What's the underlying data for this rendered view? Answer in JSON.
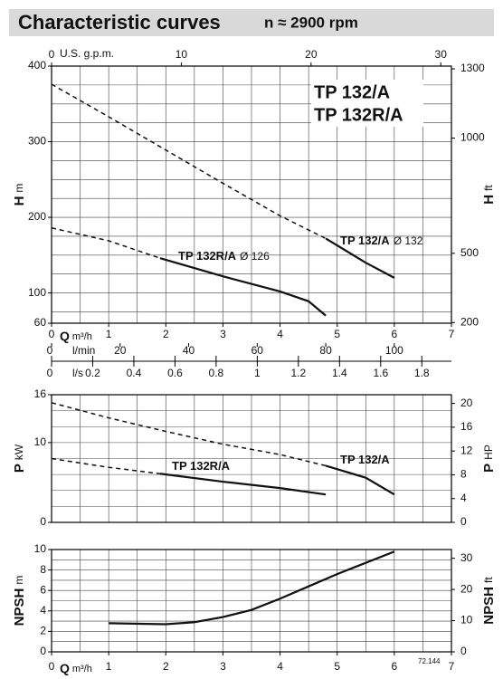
{
  "header": {
    "title": "Characteristic curves",
    "speed": "n ≈ 2900 rpm"
  },
  "chart_data": [
    {
      "type": "line",
      "ylabel": "H",
      "yunit": "m",
      "y2label": "H",
      "y2unit": "ft",
      "xlabel": "Q",
      "xunit": "m³/h",
      "xlim": [
        0,
        7
      ],
      "xticks": [
        0,
        1,
        2,
        3,
        4,
        5,
        6,
        7
      ],
      "xgrid": [
        0.5,
        1,
        1.5,
        2,
        2.5,
        3,
        3.5,
        4,
        4.5,
        5,
        5.5,
        6,
        6.5
      ],
      "ylim": [
        60,
        400
      ],
      "yticks": [
        60,
        100,
        200,
        300,
        400
      ],
      "ygrid": [
        75,
        100,
        125,
        150,
        175,
        200,
        225,
        250,
        275,
        300,
        325,
        350,
        375
      ],
      "y2lim": [
        197,
        1312
      ],
      "y2ticks": [
        200,
        500,
        1000,
        1300
      ],
      "top_axis": {
        "label": "U.S. g.p.m.",
        "lim": [
          0,
          30.82
        ],
        "ticks": [
          0,
          10,
          20,
          30
        ]
      },
      "extra_axes": [
        {
          "label": "l/min",
          "lim": [
            0,
            116.67
          ],
          "ticks": [
            0,
            20,
            40,
            60,
            80,
            100
          ]
        },
        {
          "label": "l/s",
          "lim": [
            0,
            1.944
          ],
          "ticks": [
            0,
            0.2,
            0.4,
            0.6,
            0.8,
            1,
            1.2,
            1.4,
            1.6,
            1.8
          ]
        }
      ],
      "box_labels": [
        "TP 132/A",
        "TP 132R/A"
      ],
      "annotations": [
        {
          "label": "TP 132/A",
          "size": "Ø 132"
        },
        {
          "label": "TP 132R/A",
          "size": "Ø 126"
        }
      ],
      "series": [
        {
          "color": "#111111",
          "dash_to": 4.8,
          "x": [
            0,
            1,
            2,
            3,
            4,
            4.8,
            5.5,
            6
          ],
          "values": [
            376,
            333,
            289,
            245,
            202,
            172,
            140,
            120
          ]
        },
        {
          "color": "#111111",
          "dash_to": 1.9,
          "x": [
            0,
            1,
            1.9,
            3,
            4,
            4.5,
            4.8
          ],
          "values": [
            186,
            169,
            146,
            122,
            102,
            89,
            70
          ]
        }
      ]
    },
    {
      "type": "line",
      "ylabel": "P",
      "yunit": "kW",
      "y2label": "P",
      "y2unit": "HP",
      "xlim": [
        0,
        7
      ],
      "xgrid": [
        0.5,
        1,
        1.5,
        2,
        2.5,
        3,
        3.5,
        4,
        4.5,
        5,
        5.5,
        6,
        6.5
      ],
      "ylim": [
        0,
        16
      ],
      "yticks": [
        0,
        10,
        16
      ],
      "ygrid": [
        2,
        4,
        6,
        8,
        10,
        12,
        14
      ],
      "y2lim": [
        0,
        21.46
      ],
      "y2ticks": [
        0,
        4,
        8,
        12,
        16,
        20
      ],
      "annotations": [
        {
          "label": "TP 132/A"
        },
        {
          "label": "TP 132R/A"
        }
      ],
      "series": [
        {
          "color": "#111111",
          "dash_to": 4.8,
          "x": [
            0,
            1,
            2,
            3,
            4,
            4.8,
            5.5,
            6
          ],
          "values": [
            15,
            13.1,
            11.4,
            9.8,
            8.5,
            7.1,
            5.6,
            3.5
          ]
        },
        {
          "color": "#111111",
          "dash_to": 1.9,
          "x": [
            0,
            1,
            1.9,
            3,
            4,
            4.8
          ],
          "values": [
            8,
            6.9,
            6.1,
            5.1,
            4.3,
            3.5
          ]
        }
      ]
    },
    {
      "type": "line",
      "ylabel": "NPSH",
      "yunit": "m",
      "y2label": "NPSH",
      "y2unit": "ft",
      "xlabel": "Q",
      "xunit": "m³/h",
      "xlim": [
        0,
        7
      ],
      "xticks": [
        0,
        1,
        2,
        3,
        4,
        5,
        6,
        7
      ],
      "xgrid": [
        0.5,
        1,
        1.5,
        2,
        2.5,
        3,
        3.5,
        4,
        4.5,
        5,
        5.5,
        6,
        6.5
      ],
      "ylim": [
        0,
        10
      ],
      "yticks": [
        0,
        2,
        4,
        6,
        8,
        10
      ],
      "ygrid": [
        1,
        2,
        3,
        4,
        5,
        6,
        7,
        8,
        9
      ],
      "y2lim": [
        0,
        32.8
      ],
      "y2ticks": [
        0,
        10,
        20,
        30
      ],
      "code": "72.144",
      "series": [
        {
          "color": "#111111",
          "x": [
            1,
            2,
            2.5,
            3,
            3.5,
            4,
            4.5,
            5,
            5.5,
            6
          ],
          "values": [
            2.8,
            2.7,
            2.9,
            3.4,
            4.1,
            5.2,
            6.4,
            7.6,
            8.7,
            9.8
          ]
        }
      ]
    }
  ]
}
